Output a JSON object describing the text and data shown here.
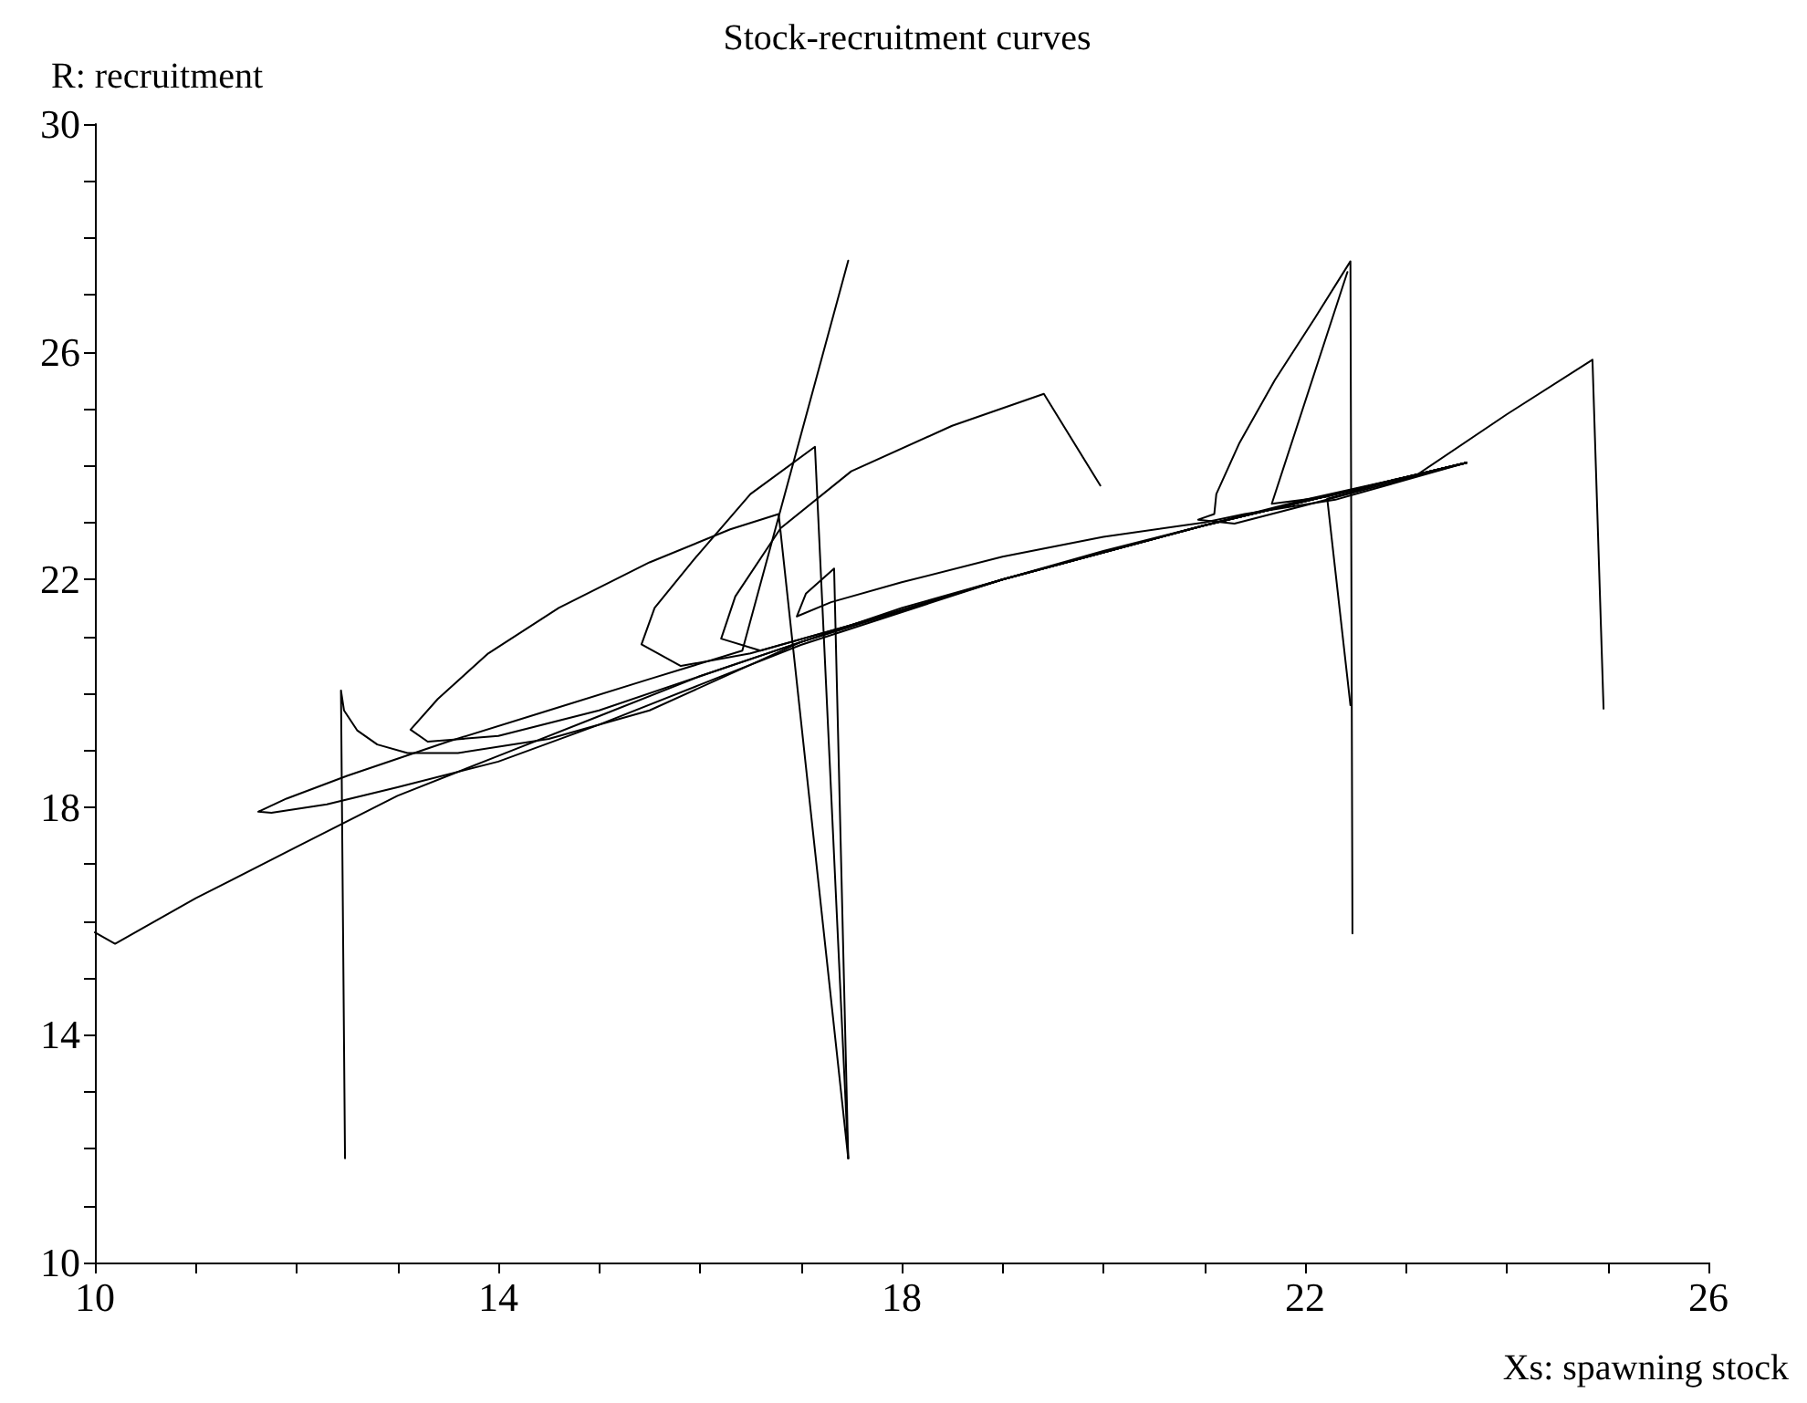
{
  "chart_data": {
    "type": "line",
    "title": "Stock-recruitment curves",
    "xlabel": "Xs: spawning stock",
    "ylabel": "R: recruitment",
    "xlim": [
      10,
      26
    ],
    "ylim": [
      10,
      30
    ],
    "xticks": [
      10,
      {
        "value": 11,
        "label": null
      },
      {
        "value": 12,
        "label": null
      },
      {
        "value": 13,
        "label": null
      },
      14,
      {
        "value": 15,
        "label": null
      },
      {
        "value": 16,
        "label": null
      },
      {
        "value": 17,
        "label": null
      },
      18,
      {
        "value": 19,
        "label": null
      },
      {
        "value": 20,
        "label": null
      },
      {
        "value": 21,
        "label": null
      },
      22,
      {
        "value": 23,
        "label": null
      },
      {
        "value": 24,
        "label": null
      },
      {
        "value": 25,
        "label": null
      },
      26
    ],
    "yticks": [
      10,
      {
        "value": 11,
        "label": null
      },
      {
        "value": 12,
        "label": null
      },
      {
        "value": 13,
        "label": null
      },
      14,
      {
        "value": 15,
        "label": null
      },
      {
        "value": 16,
        "label": null
      },
      {
        "value": 17,
        "label": null
      },
      18,
      {
        "value": 19,
        "label": null
      },
      {
        "value": 20,
        "label": null
      },
      {
        "value": 21,
        "label": null
      },
      22,
      {
        "value": 23,
        "label": null
      },
      {
        "value": 24,
        "label": null
      },
      {
        "value": 25,
        "label": null
      },
      26,
      {
        "value": 27,
        "label": null
      },
      {
        "value": 28,
        "label": null
      },
      {
        "value": 29,
        "label": null
      },
      30
    ],
    "grid": false,
    "marker": "none",
    "line_style": "solid",
    "series": [
      {
        "color": "#000000",
        "x": [
          10.0,
          10.2,
          11.0,
          12.0,
          13.0,
          14.0,
          15.0,
          16.0,
          17.0,
          18.0,
          19.0,
          20.0,
          21.0,
          22.0,
          23.0,
          23.6
        ],
        "values": [
          15.8,
          15.6,
          16.4,
          17.3,
          18.2,
          18.9,
          19.6,
          20.3,
          20.9,
          21.5,
          22.0,
          22.5,
          22.95,
          23.4,
          23.8,
          24.05
        ]
      },
      {
        "color": "#000000",
        "x": [
          12.48,
          12.44,
          12.47,
          12.6,
          12.8,
          13.1,
          13.6,
          14.5,
          15.5,
          17.0,
          19.0,
          21.0,
          23.6
        ],
        "values": [
          11.83,
          20.05,
          19.7,
          19.35,
          19.1,
          18.95,
          18.95,
          19.2,
          19.7,
          20.9,
          22.0,
          22.95,
          24.05
        ]
      },
      {
        "color": "#000000",
        "x": [
          17.47,
          16.42,
          15.5,
          14.5,
          13.5,
          12.5,
          11.9,
          11.62,
          11.75,
          12.3,
          13.0,
          14.0,
          15.0,
          16.0,
          17.0,
          19.0,
          21.0,
          23.6
        ],
        "values": [
          27.6,
          20.75,
          20.25,
          19.7,
          19.15,
          18.55,
          18.15,
          17.92,
          17.9,
          18.05,
          18.35,
          18.8,
          19.45,
          20.15,
          20.85,
          22.0,
          22.95,
          24.05
        ]
      },
      {
        "color": "#000000",
        "x": [
          17.47,
          16.78,
          16.3,
          15.5,
          14.6,
          13.9,
          13.4,
          13.13,
          13.3,
          14.0,
          15.0,
          16.0,
          17.0,
          19.0,
          21.0,
          23.6
        ],
        "values": [
          11.83,
          23.15,
          22.88,
          22.3,
          21.5,
          20.7,
          19.9,
          19.36,
          19.15,
          19.25,
          19.7,
          20.3,
          20.9,
          22.0,
          22.95,
          24.05
        ]
      },
      {
        "color": "#000000",
        "x": [
          17.47,
          17.14,
          16.5,
          15.94,
          15.55,
          15.42,
          15.81,
          16.5,
          17.5,
          19.0,
          21.0,
          23.6
        ],
        "values": [
          11.83,
          24.33,
          23.5,
          22.35,
          21.5,
          20.86,
          20.48,
          20.7,
          21.2,
          22.0,
          22.95,
          24.05
        ]
      },
      {
        "color": "#000000",
        "x": [
          17.47,
          17.33,
          17.05,
          16.96,
          17.3,
          18.0,
          19.0,
          20.0,
          21.0,
          21.4,
          22.3,
          23.6
        ],
        "values": [
          11.83,
          22.19,
          21.75,
          21.35,
          21.6,
          21.95,
          22.4,
          22.75,
          23.0,
          23.15,
          23.4,
          24.05
        ]
      },
      {
        "color": "#000000",
        "x": [
          19.97,
          19.41,
          18.5,
          17.5,
          16.8,
          16.35,
          16.21,
          16.6,
          17.5,
          19.0,
          21.0,
          23.6
        ],
        "values": [
          23.65,
          25.26,
          24.7,
          23.9,
          22.9,
          21.7,
          20.96,
          20.75,
          21.2,
          22.0,
          22.95,
          24.05
        ]
      },
      {
        "color": "#000000",
        "x": [
          22.47,
          22.45,
          22.1,
          21.7,
          21.35,
          21.12,
          21.1,
          20.94,
          21.3,
          22.0,
          23.6
        ],
        "values": [
          15.78,
          27.59,
          26.6,
          25.5,
          24.4,
          23.5,
          23.15,
          23.05,
          22.98,
          23.3,
          24.05
        ]
      },
      {
        "color": "#000000",
        "x": [
          22.45,
          22.22,
          22.9,
          23.6
        ],
        "values": [
          19.79,
          23.42,
          23.75,
          24.05
        ]
      },
      {
        "color": "#000000",
        "x": [
          22.42,
          21.67,
          22.2,
          23.6
        ],
        "values": [
          27.4,
          23.33,
          23.45,
          24.05
        ]
      },
      {
        "color": "#000000",
        "x": [
          24.96,
          24.85,
          24.0,
          23.12,
          23.6
        ],
        "values": [
          19.73,
          25.86,
          24.9,
          23.85,
          24.05
        ]
      }
    ]
  }
}
